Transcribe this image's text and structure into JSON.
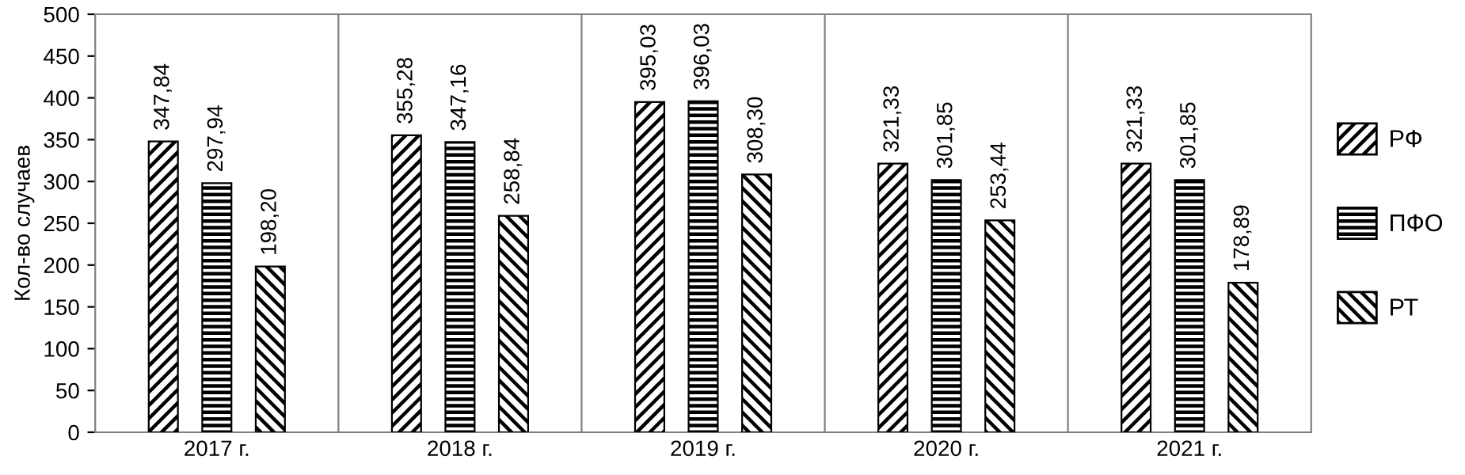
{
  "chart_data": {
    "type": "bar",
    "ylabel": "Кол-во случаев",
    "categories": [
      "2017 г.",
      "2018 г.",
      "2019 г.",
      "2020 г.",
      "2021 г."
    ],
    "series": [
      {
        "name": "РФ",
        "color": "#000000",
        "values": [
          347.84,
          355.28,
          395.03,
          321.33,
          321.33
        ],
        "value_labels": [
          "347,84",
          "355,28",
          "395,03",
          "321,33",
          "321,33"
        ]
      },
      {
        "name": "ПФО",
        "color": "#000000",
        "values": [
          297.94,
          347.16,
          396.03,
          301.85,
          301.85
        ],
        "value_labels": [
          "297,94",
          "347,16",
          "396,03",
          "301,85",
          "301,85"
        ]
      },
      {
        "name": "РТ",
        "color": "#000000",
        "values": [
          198.2,
          258.84,
          308.3,
          253.44,
          178.89
        ],
        "value_labels": [
          "198,20",
          "258,84",
          "308,30",
          "253,44",
          "178,89"
        ]
      }
    ],
    "ylim": [
      0,
      500
    ],
    "yticks": [
      0,
      50,
      100,
      150,
      200,
      250,
      300,
      350,
      400,
      450,
      500
    ],
    "grid": "x",
    "legend": "right"
  }
}
